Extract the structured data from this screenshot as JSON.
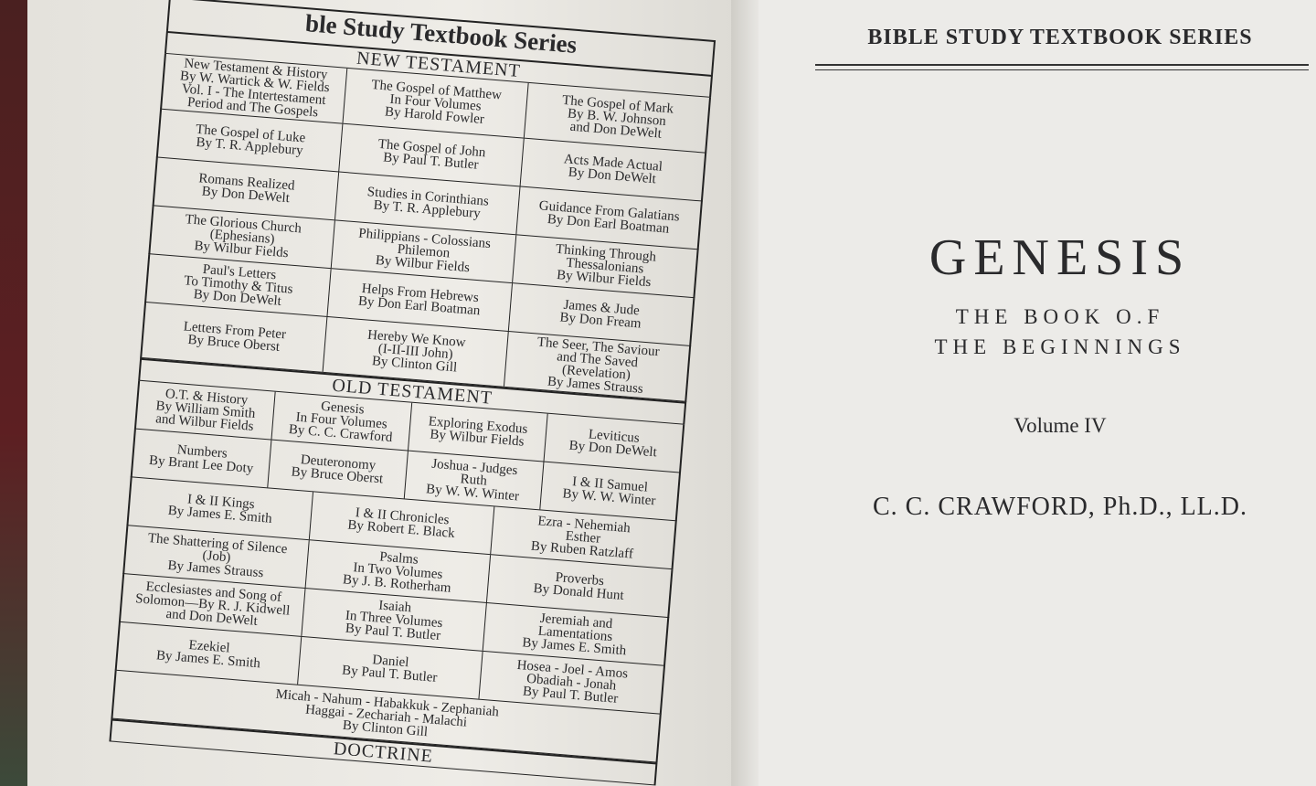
{
  "left_page": {
    "series_title": "ble Study Textbook Series",
    "sections": [
      {
        "heading": "NEW TESTAMENT",
        "rows": [
          [
            [
              "New Testament & History",
              "By W. Wartick & W. Fields",
              "Vol. I - The Intertestament",
              "Period and The Gospels"
            ],
            [
              "The Gospel of Matthew",
              "In Four Volumes",
              "By Harold Fowler"
            ],
            [
              "The Gospel of Mark",
              "By B. W. Johnson",
              "and Don DeWelt"
            ]
          ],
          [
            [
              "The Gospel of Luke",
              "By T. R. Applebury"
            ],
            [
              "The Gospel of John",
              "By Paul T. Butler"
            ],
            [
              "Acts Made Actual",
              "By Don DeWelt"
            ]
          ],
          [
            [
              "Romans Realized",
              "By Don DeWelt"
            ],
            [
              "Studies in Corinthians",
              "By T. R. Applebury"
            ],
            [
              "Guidance From Galatians",
              "By Don Earl Boatman"
            ]
          ],
          [
            [
              "The Glorious Church",
              "(Ephesians)",
              "By Wilbur Fields"
            ],
            [
              "Philippians - Colossians",
              "Philemon",
              "By Wilbur Fields"
            ],
            [
              "Thinking Through",
              "Thessalonians",
              "By Wilbur Fields"
            ]
          ],
          [
            [
              "Paul's Letters",
              "To Timothy & Titus",
              "By Don DeWelt"
            ],
            [
              "Helps From Hebrews",
              "By Don Earl Boatman"
            ],
            [
              "James & Jude",
              "By Don Fream"
            ]
          ],
          [
            [
              "Letters From Peter",
              "By Bruce Oberst"
            ],
            [
              "Hereby We Know",
              "(I-II-III John)",
              "By Clinton Gill"
            ],
            [
              "The Seer, The Saviour",
              "and The Saved",
              "(Revelation)",
              "By James Strauss"
            ]
          ]
        ]
      },
      {
        "heading": "OLD TESTAMENT",
        "rows": [
          [
            [
              "O.T. & History",
              "By William Smith",
              "and Wilbur Fields"
            ],
            [
              "Genesis",
              "In Four Volumes",
              "By C. C. Crawford"
            ],
            [
              "Exploring Exodus",
              "By Wilbur Fields"
            ],
            [
              "Leviticus",
              "By Don DeWelt"
            ]
          ],
          [
            [
              "Numbers",
              "By Brant Lee Doty"
            ],
            [
              "Deuteronomy",
              "By Bruce Oberst"
            ],
            [
              "Joshua - Judges",
              "Ruth",
              "By W. W. Winter"
            ],
            [
              "I & II Samuel",
              "By W. W. Winter"
            ]
          ],
          [
            [
              "I & II Kings",
              "By James E. Smith"
            ],
            [
              "I & II Chronicles",
              "By Robert E. Black"
            ],
            [
              "Ezra - Nehemiah",
              "Esther",
              "By Ruben Ratzlaff"
            ]
          ],
          [
            [
              "The Shattering of Silence",
              "(Job)",
              "By James Strauss"
            ],
            [
              "Psalms",
              "In Two Volumes",
              "By J. B. Rotherham"
            ],
            [
              "Proverbs",
              "By Donald Hunt"
            ]
          ],
          [
            [
              "Ecclesiastes and Song of",
              "Solomon—By R. J. Kidwell",
              "and Don DeWelt"
            ],
            [
              "Isaiah",
              "In Three Volumes",
              "By Paul T. Butler"
            ],
            [
              "Jeremiah and",
              "Lamentations",
              "By James E. Smith"
            ]
          ],
          [
            [
              "Ezekiel",
              "By James E. Smith"
            ],
            [
              "Daniel",
              "By Paul T. Butler"
            ],
            [
              "Hosea - Joel - Amos",
              "Obadiah - Jonah",
              "By Paul T. Butler"
            ]
          ],
          [
            [
              "Micah - Nahum - Habakkuk - Zephaniah",
              "Haggai - Zechariah - Malachi",
              "By Clinton Gill"
            ]
          ]
        ]
      },
      {
        "heading": "DOCTRINE"
      }
    ]
  },
  "right_page": {
    "series_header": "BIBLE STUDY TEXTBOOK SERIES",
    "title": "GENESIS",
    "subtitle_lines": [
      "THE BOOK O.F",
      "THE BEGINNINGS"
    ],
    "volume": "Volume IV",
    "author": "C. C. CRAWFORD, Ph.D., LL.D."
  }
}
